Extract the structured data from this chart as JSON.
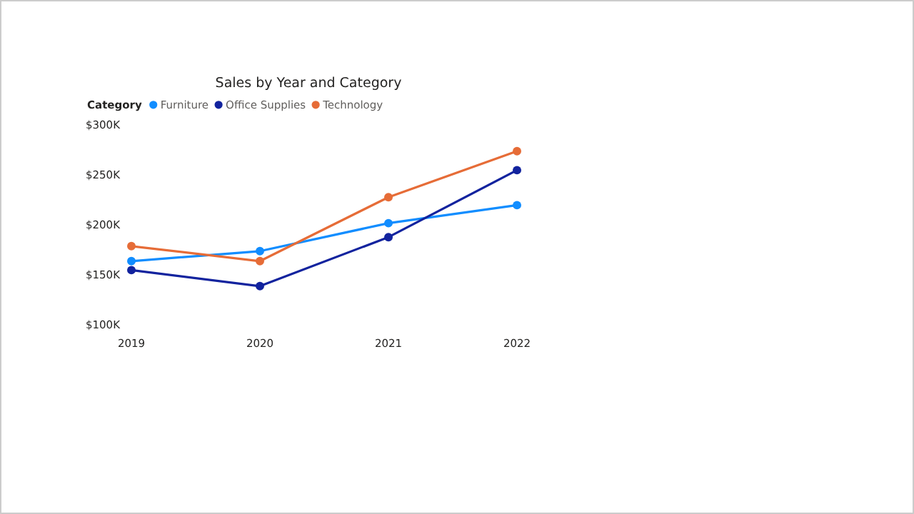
{
  "chart_data": {
    "type": "line",
    "title": "Sales by Year and Category",
    "legend_title": "Category",
    "legend": "top left",
    "marker": "circle",
    "grid": false,
    "categories": [
      "2019",
      "2020",
      "2021",
      "2022"
    ],
    "ylim": [
      100000,
      300000
    ],
    "yticks": [
      {
        "value": 100000,
        "label": "$100K"
      },
      {
        "value": 150000,
        "label": "$150K"
      },
      {
        "value": 200000,
        "label": "$200K"
      },
      {
        "value": 250000,
        "label": "$250K"
      },
      {
        "value": 300000,
        "label": "$300K"
      }
    ],
    "series": [
      {
        "name": "Furniture",
        "color": "#118dff",
        "values": [
          164000,
          174000,
          202000,
          220000
        ]
      },
      {
        "name": "Office Supplies",
        "color": "#12239e",
        "values": [
          155000,
          139000,
          188000,
          255000
        ]
      },
      {
        "name": "Technology",
        "color": "#e66c37",
        "values": [
          179000,
          164000,
          228000,
          274000
        ]
      }
    ]
  }
}
